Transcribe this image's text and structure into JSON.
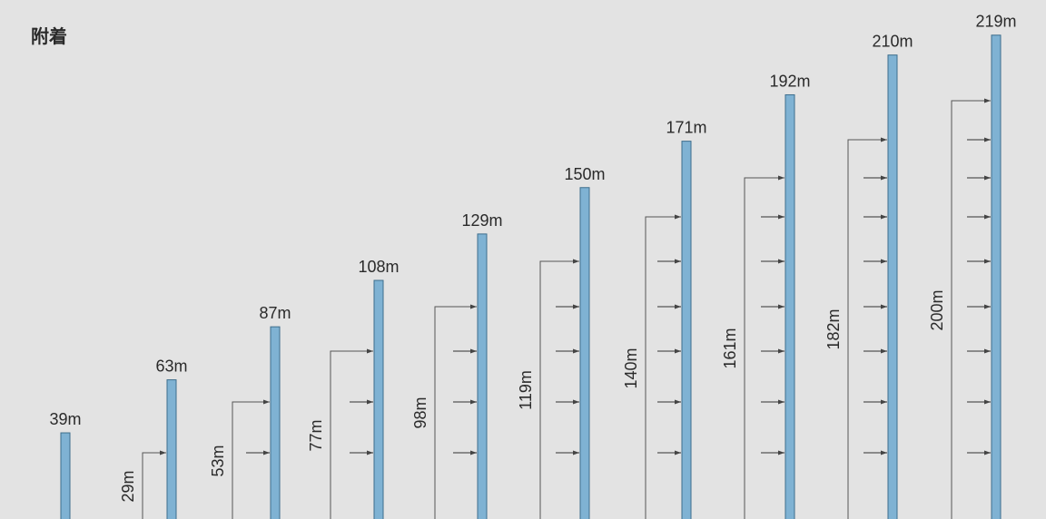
{
  "title": "附着",
  "colors": {
    "mast": "#7fb2d3",
    "mast_stroke": "#3d6e8c",
    "line": "#555555",
    "background": "#e3e3e3"
  },
  "stages": [
    {
      "height": 39,
      "height_label": "39m",
      "tie_height_label": null,
      "tie_count": 0
    },
    {
      "height": 63,
      "height_label": "63m",
      "tie_height_label": "29m",
      "tie_count": 1
    },
    {
      "height": 87,
      "height_label": "87m",
      "tie_height_label": "53m",
      "tie_count": 2
    },
    {
      "height": 108,
      "height_label": "108m",
      "tie_height_label": "77m",
      "tie_count": 3
    },
    {
      "height": 129,
      "height_label": "129m",
      "tie_height_label": "98m",
      "tie_count": 4
    },
    {
      "height": 150,
      "height_label": "150m",
      "tie_height_label": "119m",
      "tie_count": 5
    },
    {
      "height": 171,
      "height_label": "171m",
      "tie_height_label": "140m",
      "tie_count": 6
    },
    {
      "height": 192,
      "height_label": "192m",
      "tie_height_label": "161m",
      "tie_count": 7
    },
    {
      "height": 210,
      "height_label": "210m",
      "tie_height_label": "182m",
      "tie_count": 8
    },
    {
      "height": 219,
      "height_label": "219m",
      "tie_height_label": "200m",
      "tie_count": 9
    }
  ]
}
